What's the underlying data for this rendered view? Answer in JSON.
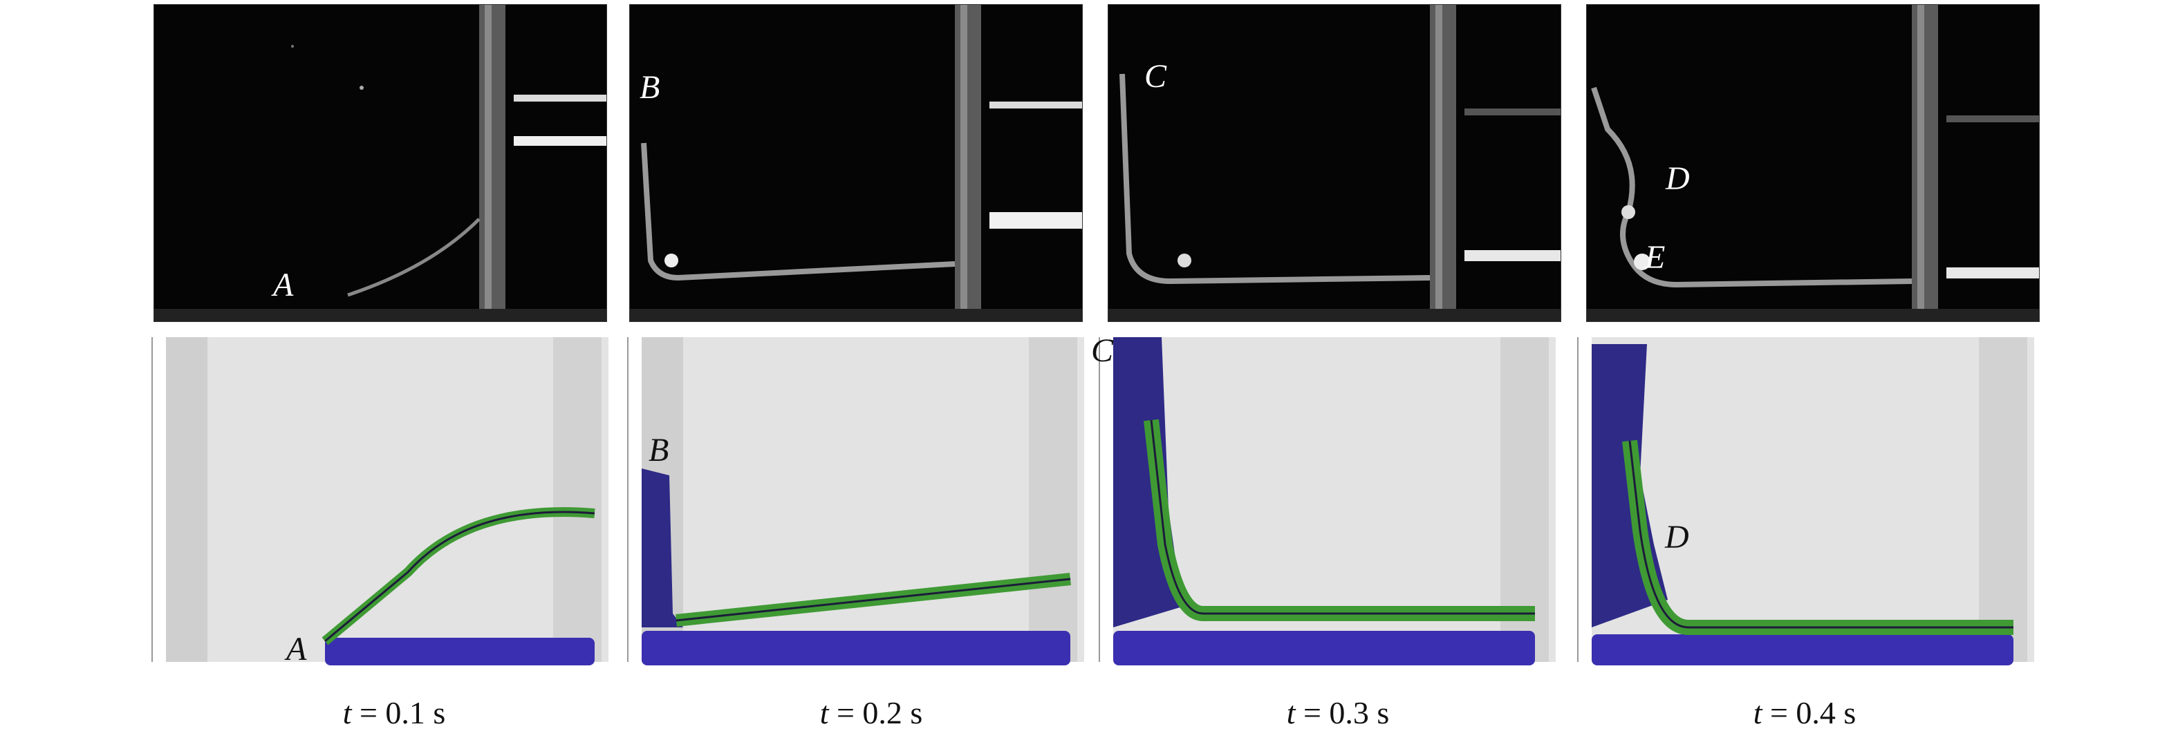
{
  "panels": [
    {
      "photo_labels": [
        "A"
      ],
      "sim_labels": [
        "A"
      ],
      "caption": {
        "var": "t",
        "rest": " = 0.1 s"
      }
    },
    {
      "photo_labels": [
        "B"
      ],
      "sim_labels": [
        "B"
      ],
      "caption": {
        "var": "t",
        "rest": " = 0.2 s"
      }
    },
    {
      "photo_labels": [
        "C"
      ],
      "sim_labels": [
        "C"
      ],
      "caption": {
        "var": "t",
        "rest": " = 0.3 s"
      }
    },
    {
      "photo_labels": [
        "D",
        "E"
      ],
      "sim_labels": [
        "D"
      ],
      "caption": {
        "var": "t",
        "rest": " = 0.4 s"
      }
    }
  ],
  "colors": {
    "water": "#3a2fb0",
    "membrane": "#3f9a34",
    "tank": "#e2e2e2",
    "wall": "#cfcfcf",
    "photo_bg": "#050505"
  }
}
